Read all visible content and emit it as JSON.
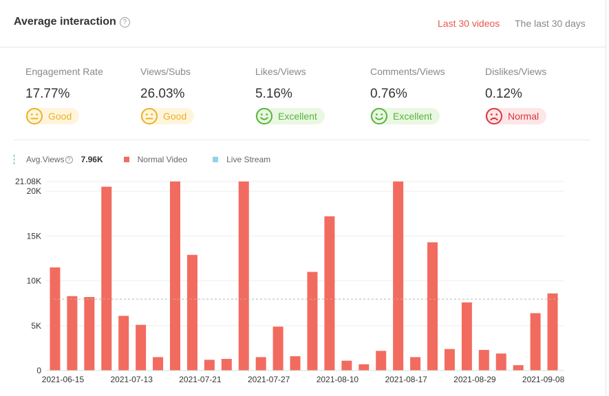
{
  "header": {
    "title": "Average interaction",
    "help_glyph": "?",
    "tabs": [
      {
        "label": "Last 30 videos",
        "active": true
      },
      {
        "label": "The last 30 days",
        "active": false
      }
    ]
  },
  "metrics": [
    {
      "label": "Engagement Rate",
      "value": "17.77%",
      "rating": "Good",
      "face": "neutral-face-icon"
    },
    {
      "label": "Views/Subs",
      "value": "26.03%",
      "rating": "Good",
      "face": "neutral-face-icon"
    },
    {
      "label": "Likes/Views",
      "value": "5.16%",
      "rating": "Excellent",
      "face": "smile-face-icon"
    },
    {
      "label": "Comments/Views",
      "value": "0.76%",
      "rating": "Excellent",
      "face": "smile-face-icon"
    },
    {
      "label": "Dislikes/Views",
      "value": "0.12%",
      "rating": "Normal",
      "face": "frown-face-icon"
    }
  ],
  "colors": {
    "accent": "#e8574f",
    "bar": "#f26b5f",
    "live": "#8fd3ee",
    "good": "#eab127",
    "excellent": "#57b43a",
    "normal": "#d9363e"
  },
  "legend": {
    "avg_label": "Avg.Views",
    "avg_value": "7.96K",
    "normal_label": "Normal Video",
    "live_label": "Live Stream"
  },
  "chart_data": {
    "type": "bar",
    "series": [
      {
        "name": "Normal Video",
        "values": [
          11500,
          8300,
          8200,
          20500,
          6100,
          5100,
          1500,
          21080,
          12900,
          1200,
          1300,
          21080,
          1500,
          4900,
          1600,
          11000,
          17200,
          1100,
          700,
          2200,
          21080,
          1500,
          14300,
          2400,
          7600,
          2300,
          1900,
          600,
          6400,
          8600
        ]
      },
      {
        "name": "Live Stream",
        "values": []
      }
    ],
    "x_tick_labels": [
      "2021-06-15",
      "2021-07-13",
      "2021-07-21",
      "2021-07-27",
      "2021-08-10",
      "2021-08-17",
      "2021-08-29",
      "2021-09-08"
    ],
    "x_tick_every": 4,
    "y_ticks": [
      {
        "value": 0,
        "label": "0"
      },
      {
        "value": 5000,
        "label": "5K"
      },
      {
        "value": 10000,
        "label": "10K"
      },
      {
        "value": 15000,
        "label": "15K"
      },
      {
        "value": 20000,
        "label": "20K"
      },
      {
        "value": 21080,
        "label": "21.08K"
      }
    ],
    "ylim": [
      0,
      21080
    ],
    "average": 7960,
    "average_label": "7.96K",
    "grid": true
  }
}
